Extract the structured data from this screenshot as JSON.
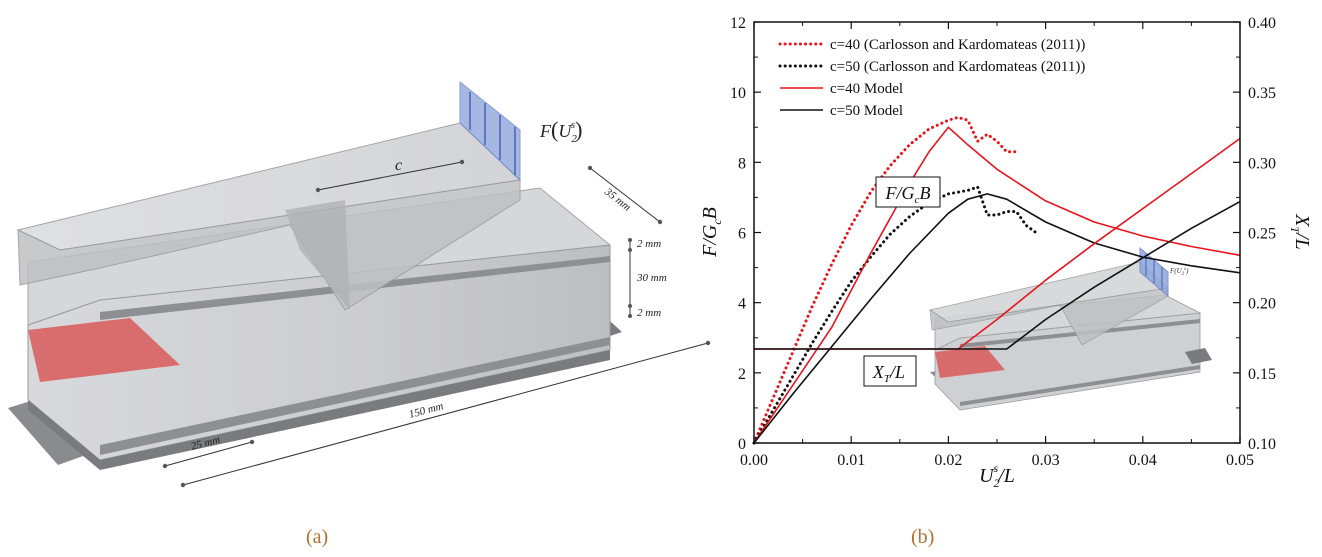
{
  "panel_a": {
    "caption": "(a)",
    "load_label_prefix": "F",
    "load_label_var": "U",
    "load_label_sub": "2",
    "load_label_sup": "s",
    "c_label": "c",
    "dim_depth": "35 mm",
    "dim_top_face": "2 mm",
    "dim_core": "30 mm",
    "dim_bottom_face": "2 mm",
    "dim_length": "150 mm",
    "dim_crack": "25 mm",
    "colors": {
      "load": "#8fa6dc",
      "crack": "#d95a5a",
      "block": "#c8c9cc",
      "support": "#7a7b7e"
    }
  },
  "panel_b": {
    "caption": "(b)",
    "inset_label": "F(U",
    "chart_data": {
      "type": "line",
      "xlabel": "U",
      "xlabel_sub": "2",
      "xlabel_sup": "s",
      "xlabel_tail": "/L",
      "ylabel_left": "F/G",
      "ylabel_left_sub": "c",
      "ylabel_left_tail": "B",
      "ylabel_right": "X",
      "ylabel_right_sub": "T",
      "ylabel_right_tail": "/L",
      "xlim": [
        0.0,
        0.05
      ],
      "ylim_left": [
        0,
        12
      ],
      "ylim_right": [
        0.1,
        0.4
      ],
      "xticks": [
        "0.00",
        "0.01",
        "0.02",
        "0.03",
        "0.04",
        "0.05"
      ],
      "yticks_left": [
        "0",
        "2",
        "4",
        "6",
        "8",
        "10",
        "12"
      ],
      "yticks_right": [
        "0.10",
        "0.15",
        "0.20",
        "0.25",
        "0.30",
        "0.35",
        "0.40"
      ],
      "legend_position": "top-left",
      "annotations": {
        "force": {
          "main": "F/G",
          "sub": "c",
          "tail": "B"
        },
        "crack": {
          "main": "X",
          "sub": "T",
          "tail": "/L"
        }
      },
      "series": [
        {
          "name": "c=40 (Carlosson and Kardomateas (2011))",
          "color": "#e8141c",
          "dash": "dot",
          "axis": "left",
          "x": [
            0,
            0.002,
            0.004,
            0.006,
            0.008,
            0.01,
            0.012,
            0.014,
            0.016,
            0.018,
            0.02,
            0.021,
            0.022,
            0.023,
            0.024,
            0.025,
            0.026,
            0.027
          ],
          "y": [
            0,
            1.3,
            2.6,
            3.9,
            5.1,
            6.2,
            7.15,
            7.9,
            8.5,
            8.95,
            9.2,
            9.28,
            9.2,
            8.6,
            8.8,
            8.6,
            8.3,
            8.3
          ]
        },
        {
          "name": "c=50 (Carlosson and Kardomateas (2011))",
          "color": "#111111",
          "dash": "dot",
          "axis": "left",
          "x": [
            0,
            0.002,
            0.004,
            0.006,
            0.008,
            0.01,
            0.012,
            0.014,
            0.016,
            0.018,
            0.02,
            0.022,
            0.023,
            0.024,
            0.025,
            0.026,
            0.027,
            0.028,
            0.029
          ],
          "y": [
            0,
            0.95,
            1.9,
            2.85,
            3.75,
            4.6,
            5.3,
            5.95,
            6.45,
            6.85,
            7.1,
            7.2,
            7.3,
            6.5,
            6.5,
            6.6,
            6.6,
            6.2,
            6.0
          ]
        },
        {
          "name": "c=40 Model",
          "color": "#e8141c",
          "dash": "solid",
          "axis": "left",
          "x": [
            0,
            0.004,
            0.008,
            0.012,
            0.016,
            0.018,
            0.02,
            0.022,
            0.025,
            0.03,
            0.035,
            0.04,
            0.045,
            0.05
          ],
          "y": [
            0,
            1.65,
            3.3,
            5.4,
            7.4,
            8.3,
            9.0,
            8.5,
            7.8,
            6.9,
            6.3,
            5.9,
            5.6,
            5.35
          ]
        },
        {
          "name": "c=50 Model",
          "color": "#111111",
          "dash": "solid",
          "axis": "left",
          "x": [
            0,
            0.004,
            0.008,
            0.012,
            0.016,
            0.02,
            0.022,
            0.024,
            0.026,
            0.03,
            0.035,
            0.04,
            0.045,
            0.05
          ],
          "y": [
            0,
            1.4,
            2.75,
            4.1,
            5.4,
            6.55,
            6.95,
            7.1,
            6.95,
            6.3,
            5.7,
            5.3,
            5.05,
            4.85
          ]
        },
        {
          "name": "",
          "color": "#e8141c",
          "dash": "solid",
          "axis": "right",
          "x": [
            0,
            0.021,
            0.025,
            0.03,
            0.035,
            0.04,
            0.045,
            0.05
          ],
          "y": [
            0.167,
            0.167,
            0.188,
            0.216,
            0.242,
            0.267,
            0.292,
            0.317
          ]
        },
        {
          "name": "",
          "color": "#111111",
          "dash": "solid",
          "axis": "right",
          "x": [
            0,
            0.026,
            0.03,
            0.035,
            0.04,
            0.045,
            0.05
          ],
          "y": [
            0.167,
            0.167,
            0.188,
            0.211,
            0.232,
            0.253,
            0.272
          ]
        }
      ]
    }
  }
}
